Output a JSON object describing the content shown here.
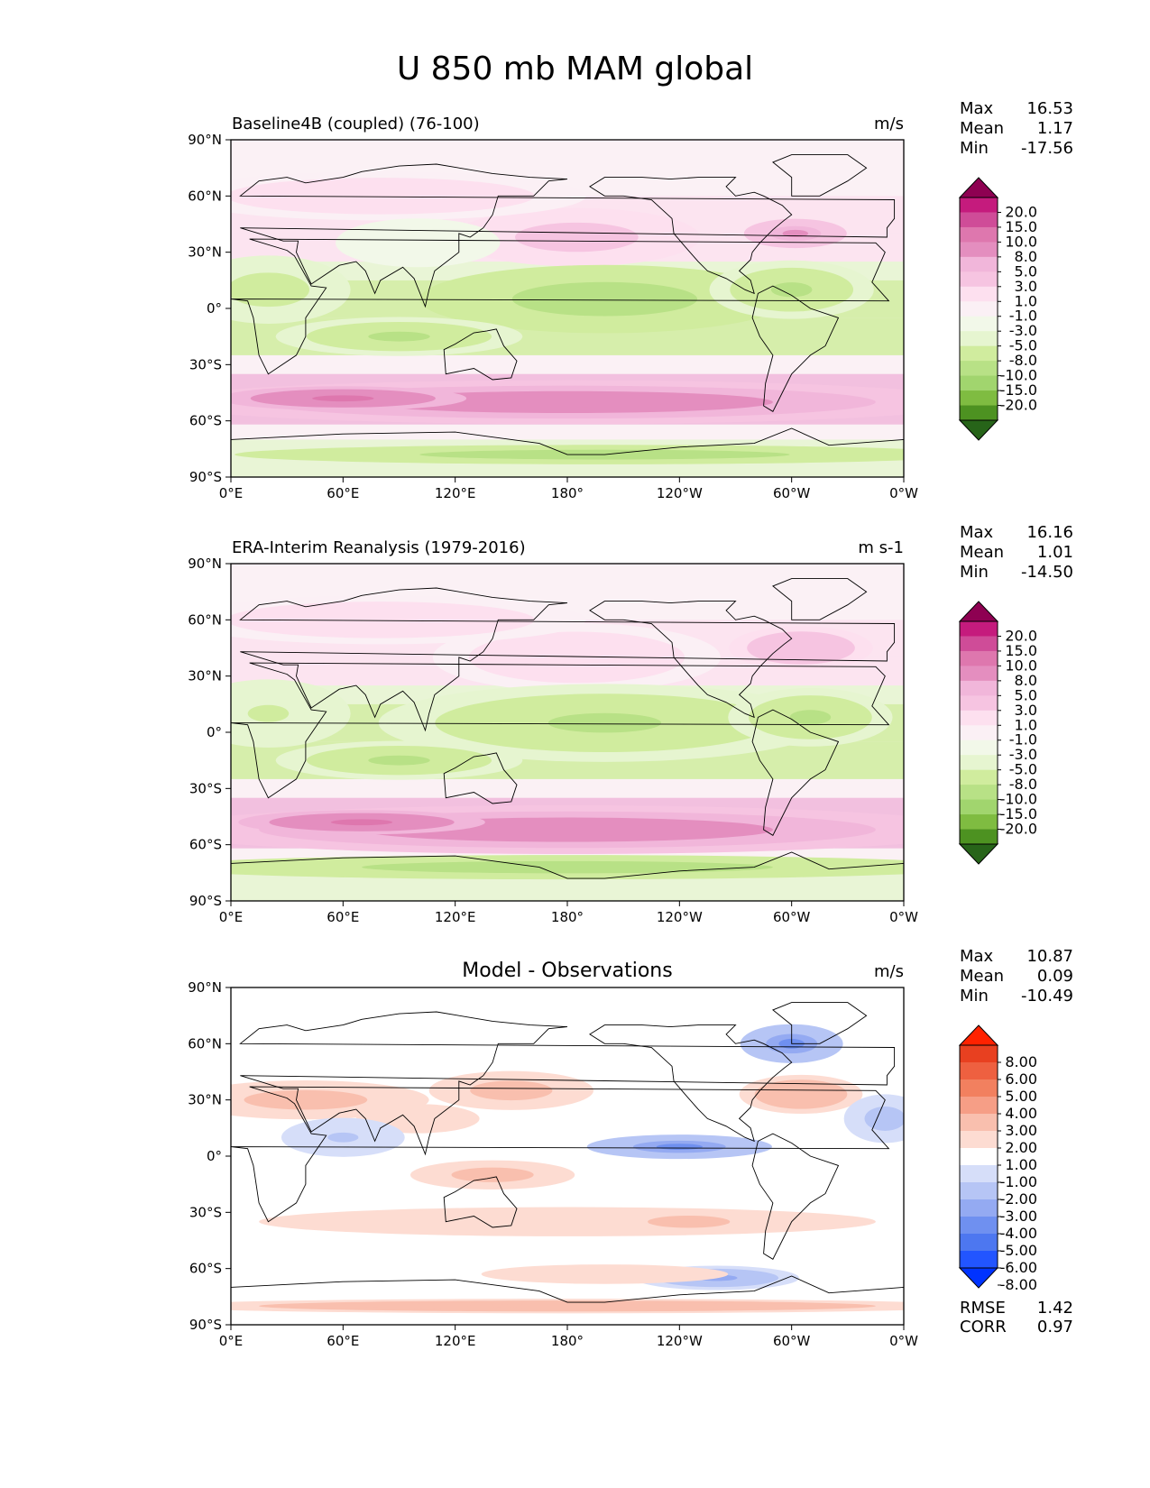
{
  "figure_title": "U 850 mb MAM global",
  "colors": {
    "diverging_pink_green": [
      "#276419",
      "#4d9221",
      "#7fbc41",
      "#a1d56e",
      "#b8e186",
      "#d0ec9e",
      "#e6f5d0",
      "#f2f8e9",
      "#fbf0f5",
      "#fde0ef",
      "#f6c4e1",
      "#f1b6da",
      "#e48ebf",
      "#de77ae",
      "#cf4c98",
      "#c51b7d",
      "#8e0152"
    ],
    "diverging_blue_red": [
      "#0033ff",
      "#2255ff",
      "#4d77f0",
      "#6f90f0",
      "#94aaf2",
      "#b6c5f5",
      "#d6def9",
      "#ffffff",
      "#fddcd2",
      "#f9bfae",
      "#f69e86",
      "#f2805f",
      "#ee6040",
      "#e84020",
      "#ff2200"
    ],
    "coastline": "#000000",
    "land": "#ffffff"
  },
  "icons": {
    "colorbar_extend": "triangle-ends"
  },
  "chart_data": [
    {
      "type": "heatmap",
      "panel_title": "Baseline4B (coupled) (76-100)",
      "units": "m/s",
      "stats": [
        {
          "label": "Max",
          "value": "16.53"
        },
        {
          "label": "Mean",
          "value": "1.17"
        },
        {
          "label": "Min",
          "value": "-17.56"
        }
      ],
      "colorbar_levels": [
        "20.0",
        "15.0",
        "10.0",
        "8.0",
        "5.0",
        "3.0",
        "1.0",
        "-1.0",
        "-3.0",
        "-5.0",
        "-8.0",
        "-10.0",
        "-15.0",
        "-20.0"
      ],
      "colormap": "pink_green",
      "xlabel": "",
      "ylabel": "",
      "xlim": [
        0,
        360
      ],
      "ylim": [
        -90,
        90
      ],
      "x_ticks": [
        "0°E",
        "60°E",
        "120°E",
        "180°",
        "120°W",
        "60°W",
        "0°W"
      ],
      "y_ticks": [
        "90°N",
        "60°N",
        "30°N",
        "0°",
        "30°S",
        "60°S",
        "90°S"
      ],
      "features": [
        {
          "lon": 180,
          "lat": -50,
          "value": 13,
          "dlon": 200,
          "dlat": 9
        },
        {
          "lon": 60,
          "lat": -48,
          "value": 17,
          "dlon": 60,
          "dlat": 5
        },
        {
          "lon": 175,
          "lat": 37,
          "value": 11,
          "dlon": 30,
          "dlat": 6
        },
        {
          "lon": 302,
          "lat": 40,
          "value": 11,
          "dlon": 25,
          "dlat": 6
        },
        {
          "lon": 185,
          "lat": 38,
          "value": 6,
          "dlon": 60,
          "dlat": 12
        },
        {
          "lon": 205,
          "lat": 2,
          "value": -10,
          "dlon": 45,
          "dlat": 7
        },
        {
          "lon": 200,
          "lat": 5,
          "value": -6,
          "dlon": 90,
          "dlat": 14
        },
        {
          "lon": 300,
          "lat": 10,
          "value": -5,
          "dlon": 40,
          "dlat": 12
        },
        {
          "lon": 90,
          "lat": -15,
          "value": -5,
          "dlon": 60,
          "dlat": 8
        },
        {
          "lon": 20,
          "lat": 10,
          "value": -4,
          "dlon": 40,
          "dlat": 14
        },
        {
          "lon": 80,
          "lat": 60,
          "value": 5,
          "dlon": 100,
          "dlat": 10
        },
        {
          "lon": 100,
          "lat": 35,
          "value": 0,
          "dlon": 40,
          "dlat": 10
        },
        {
          "lon": 200,
          "lat": -78,
          "value": -6,
          "dlon": 180,
          "dlat": 4
        }
      ]
    },
    {
      "type": "heatmap",
      "panel_title": "ERA-Interim Reanalysis (1979-2016)",
      "units": "m s-1",
      "stats": [
        {
          "label": "Max",
          "value": "16.16"
        },
        {
          "label": "Mean",
          "value": "1.01"
        },
        {
          "label": "Min",
          "value": "-14.50"
        }
      ],
      "colorbar_levels": [
        "20.0",
        "15.0",
        "10.0",
        "8.0",
        "5.0",
        "3.0",
        "1.0",
        "-1.0",
        "-3.0",
        "-5.0",
        "-8.0",
        "-10.0",
        "-15.0",
        "-20.0"
      ],
      "colormap": "pink_green",
      "xlabel": "",
      "ylabel": "",
      "xlim": [
        0,
        360
      ],
      "ylim": [
        -90,
        90
      ],
      "x_ticks": [
        "0°E",
        "60°E",
        "120°E",
        "180°",
        "120°W",
        "60°W",
        "0°W"
      ],
      "y_ticks": [
        "90°N",
        "60°N",
        "30°N",
        "0°",
        "30°S",
        "60°S",
        "90°S"
      ],
      "features": [
        {
          "lon": 180,
          "lat": -52,
          "value": 13,
          "dlon": 200,
          "dlat": 10
        },
        {
          "lon": 70,
          "lat": -48,
          "value": 16,
          "dlon": 60,
          "dlat": 5
        },
        {
          "lon": 175,
          "lat": 40,
          "value": 8,
          "dlon": 45,
          "dlat": 8
        },
        {
          "lon": 305,
          "lat": 45,
          "value": 8,
          "dlon": 35,
          "dlat": 9
        },
        {
          "lon": 185,
          "lat": 40,
          "value": 5,
          "dlon": 70,
          "dlat": 14
        },
        {
          "lon": 190,
          "lat": 10,
          "value": -8,
          "dlon": 60,
          "dlat": 9
        },
        {
          "lon": 200,
          "lat": 5,
          "value": -5,
          "dlon": 110,
          "dlat": 16
        },
        {
          "lon": 310,
          "lat": 8,
          "value": -5,
          "dlon": 40,
          "dlat": 12
        },
        {
          "lon": 90,
          "lat": -15,
          "value": -5,
          "dlon": 60,
          "dlat": 8
        },
        {
          "lon": 20,
          "lat": 10,
          "value": -3,
          "dlon": 40,
          "dlat": 14
        },
        {
          "lon": 80,
          "lat": 60,
          "value": 5,
          "dlon": 100,
          "dlat": 10
        },
        {
          "lon": 180,
          "lat": -72,
          "value": -6,
          "dlon": 200,
          "dlat": 5
        }
      ]
    },
    {
      "type": "heatmap",
      "panel_title": "Model - Observations",
      "units": "m/s",
      "stats": [
        {
          "label": "Max",
          "value": "10.87"
        },
        {
          "label": "Mean",
          "value": "0.09"
        },
        {
          "label": "Min",
          "value": "-10.49"
        }
      ],
      "extra_stats": [
        {
          "label": "RMSE",
          "value": "1.42"
        },
        {
          "label": "CORR",
          "value": "0.97"
        }
      ],
      "colorbar_levels": [
        "8.00",
        "6.00",
        "5.00",
        "4.00",
        "3.00",
        "2.00",
        "1.00",
        "-1.00",
        "-2.00",
        "-3.00",
        "-4.00",
        "-5.00",
        "-6.00",
        "-8.00"
      ],
      "colormap": "blue_red",
      "xlabel": "",
      "ylabel": "",
      "xlim": [
        0,
        360
      ],
      "ylim": [
        -90,
        90
      ],
      "x_ticks": [
        "0°E",
        "60°E",
        "120°E",
        "180°",
        "120°W",
        "60°W",
        "0°W"
      ],
      "y_ticks": [
        "90°N",
        "60°N",
        "30°N",
        "0°",
        "30°S",
        "60°S",
        "90°S"
      ],
      "features": [
        {
          "lon": 150,
          "lat": 35,
          "value": 2.5,
          "dlon": 40,
          "dlat": 8
        },
        {
          "lon": 305,
          "lat": 33,
          "value": 3,
          "dlon": 30,
          "dlat": 8
        },
        {
          "lon": 40,
          "lat": 30,
          "value": 2.5,
          "dlon": 60,
          "dlat": 8
        },
        {
          "lon": 100,
          "lat": 20,
          "value": 2,
          "dlon": 30,
          "dlat": 6
        },
        {
          "lon": 240,
          "lat": 5,
          "value": -4,
          "dlon": 45,
          "dlat": 5
        },
        {
          "lon": 140,
          "lat": -10,
          "value": 2.5,
          "dlon": 40,
          "dlat": 6
        },
        {
          "lon": 180,
          "lat": -35,
          "value": 2,
          "dlon": 150,
          "dlat": 6
        },
        {
          "lon": 245,
          "lat": -35,
          "value": 2.5,
          "dlon": 40,
          "dlat": 5
        },
        {
          "lon": 300,
          "lat": 60,
          "value": -4,
          "dlon": 25,
          "dlat": 8
        },
        {
          "lon": 60,
          "lat": 10,
          "value": -2,
          "dlon": 30,
          "dlat": 8
        },
        {
          "lon": 260,
          "lat": -65,
          "value": -3,
          "dlon": 40,
          "dlat": 5
        },
        {
          "lon": 180,
          "lat": -80,
          "value": 3,
          "dlon": 200,
          "dlat": 3
        },
        {
          "lon": 200,
          "lat": -63,
          "value": 2,
          "dlon": 60,
          "dlat": 4
        },
        {
          "lon": 350,
          "lat": 20,
          "value": -2.5,
          "dlon": 20,
          "dlat": 10
        }
      ]
    }
  ]
}
